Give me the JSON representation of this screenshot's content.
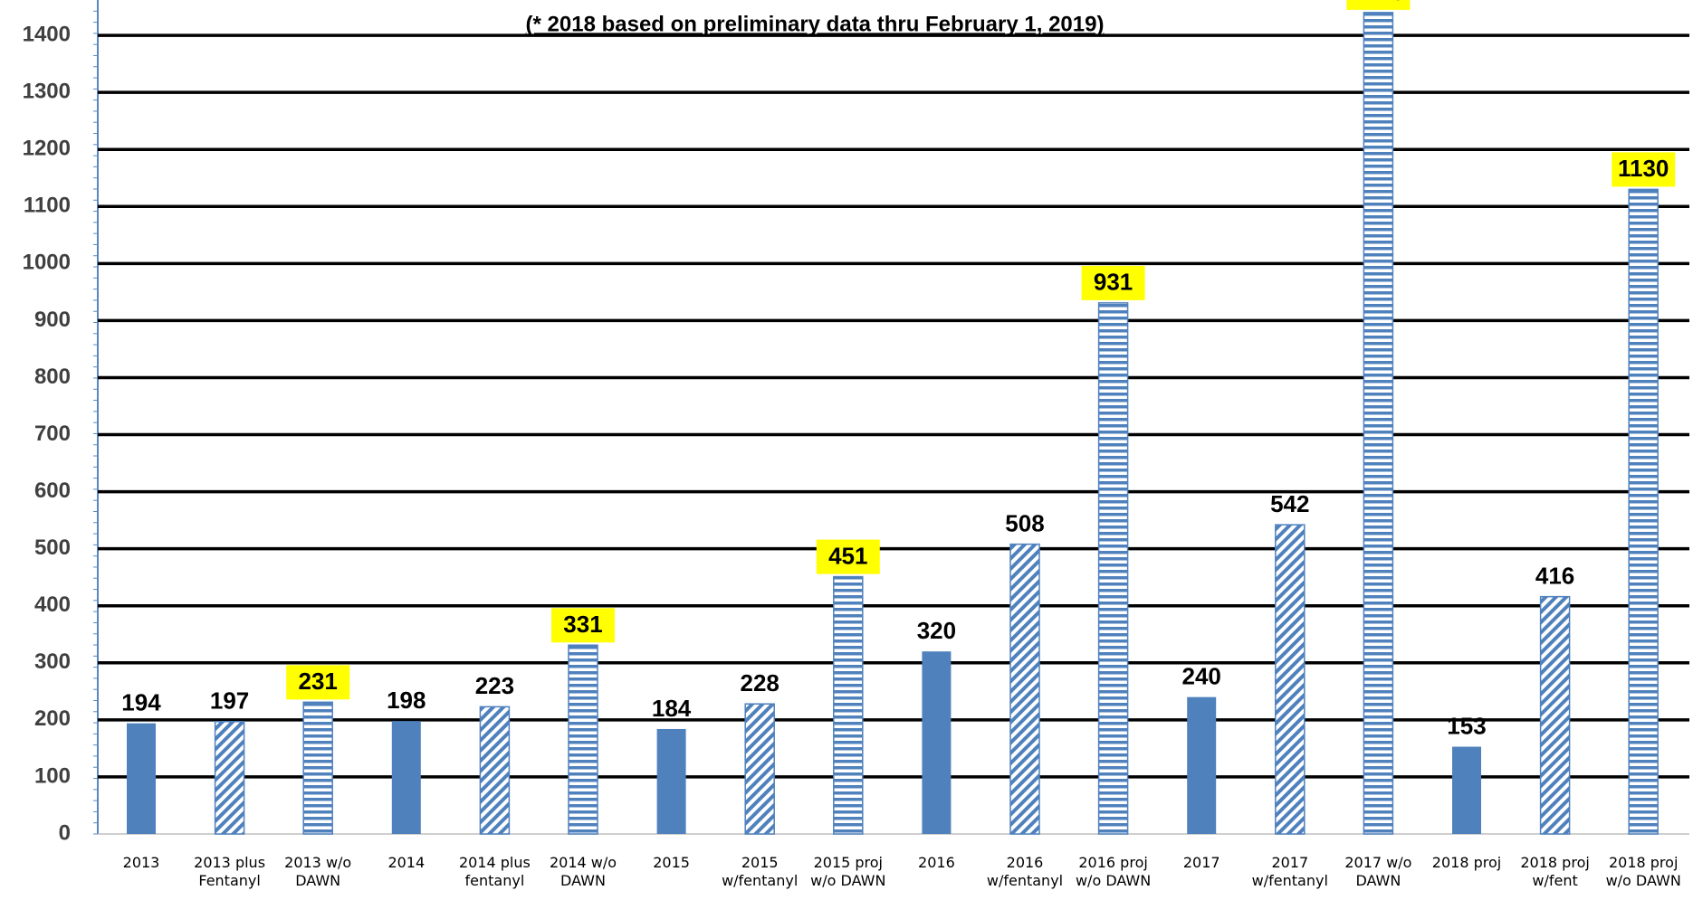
{
  "chart_data": {
    "type": "bar",
    "subtitle": "(* 2018 based on preliminary data thru February 1, 2019)",
    "categories": [
      "2013",
      "2013 plus Fentanyl",
      "2013 w/o DAWN",
      "2014",
      "2014 plus fentanyl",
      "2014 w/o DAWN",
      "2015",
      "2015 w/fentanyl",
      "2015 proj w/o DAWN",
      "2016",
      "2016 w/fentanyl",
      "2016 proj w/o DAWN",
      "2017",
      "2017 w/fentanyl",
      "2017 w/o DAWN",
      "2018 proj",
      "2018 proj w/fent",
      "2018 proj w/o DAWN"
    ],
    "values": [
      194,
      197,
      231,
      198,
      223,
      331,
      184,
      228,
      451,
      320,
      508,
      931,
      240,
      542,
      1440,
      153,
      416,
      1130
    ],
    "styles": [
      "solid",
      "hatch",
      "stripes",
      "solid",
      "hatch",
      "stripes",
      "solid",
      "hatch",
      "stripes",
      "solid",
      "hatch",
      "stripes",
      "solid",
      "hatch",
      "stripes",
      "solid",
      "hatch",
      "stripes"
    ],
    "color": "#4f81bd",
    "ylim": [
      0,
      1462
    ],
    "yticks": [
      0,
      100,
      200,
      300,
      400,
      500,
      600,
      700,
      800,
      900,
      1000,
      1100,
      1200,
      1300,
      1400
    ],
    "grid": true
  }
}
